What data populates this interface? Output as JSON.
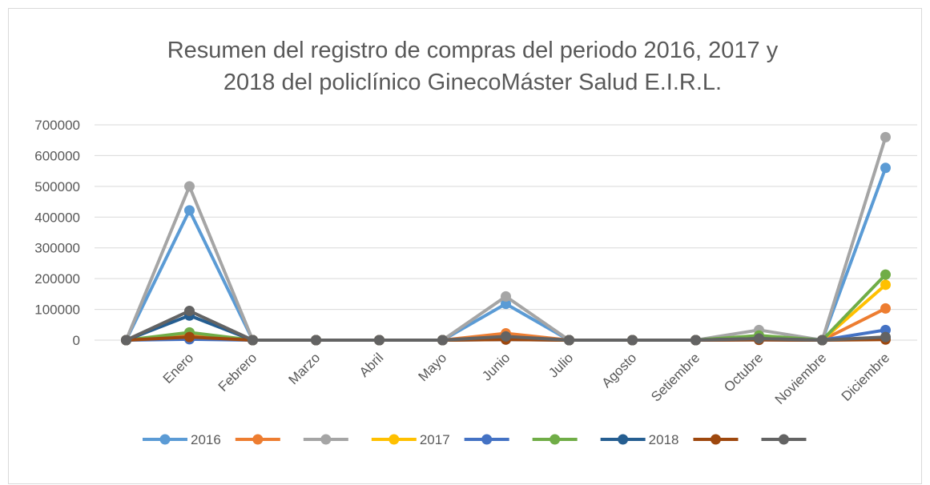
{
  "chart_data": {
    "type": "line",
    "title": [
      "Resumen del registro de compras del periodo 2016, 2017 y",
      "2018 del policlínico GinecoMáster Salud E.I.R.L."
    ],
    "categories": [
      null,
      "Enero",
      "Febrero",
      "Marzo",
      "Abril",
      "Mayo",
      "Junio",
      "Julio",
      "Agosto",
      "Setiembre",
      "Octubre",
      "Noviembre",
      "Diciembre"
    ],
    "ylim": [
      0,
      700000
    ],
    "yticks": [
      0,
      100000,
      200000,
      300000,
      400000,
      500000,
      600000,
      700000
    ],
    "grid": true,
    "legend": "bottom",
    "series": [
      {
        "name": "2016",
        "color": "#5b9bd5",
        "values": [
          0,
          422000,
          0,
          0,
          0,
          0,
          118000,
          0,
          0,
          0,
          2000,
          0,
          560000
        ]
      },
      {
        "color": "#ed7d31",
        "values": [
          0,
          15000,
          0,
          0,
          0,
          0,
          22000,
          0,
          0,
          0,
          3000,
          0,
          103000
        ]
      },
      {
        "color": "#a5a5a5",
        "values": [
          0,
          500000,
          0,
          0,
          0,
          0,
          142000,
          0,
          0,
          0,
          33000,
          0,
          660000
        ]
      },
      {
        "name": "2017",
        "color": "#ffc000",
        "values": [
          0,
          10000,
          0,
          0,
          0,
          0,
          3000,
          0,
          0,
          0,
          2000,
          0,
          180000
        ]
      },
      {
        "color": "#4472c4",
        "values": [
          0,
          3000,
          0,
          0,
          0,
          0,
          2000,
          0,
          0,
          0,
          1000,
          0,
          33000
        ]
      },
      {
        "color": "#70ad47",
        "values": [
          0,
          25000,
          0,
          0,
          0,
          0,
          5000,
          0,
          0,
          0,
          15000,
          0,
          213000
        ]
      },
      {
        "name": "2018",
        "color": "#255e91",
        "values": [
          0,
          80000,
          0,
          0,
          0,
          0,
          10000,
          0,
          0,
          0,
          5000,
          0,
          8000
        ]
      },
      {
        "color": "#9e480e",
        "values": [
          0,
          10000,
          0,
          0,
          0,
          0,
          2000,
          0,
          0,
          0,
          1000,
          0,
          2000
        ]
      },
      {
        "color": "#636363",
        "values": [
          0,
          95000,
          0,
          0,
          0,
          0,
          12000,
          0,
          0,
          0,
          5000,
          0,
          10000
        ]
      }
    ]
  }
}
